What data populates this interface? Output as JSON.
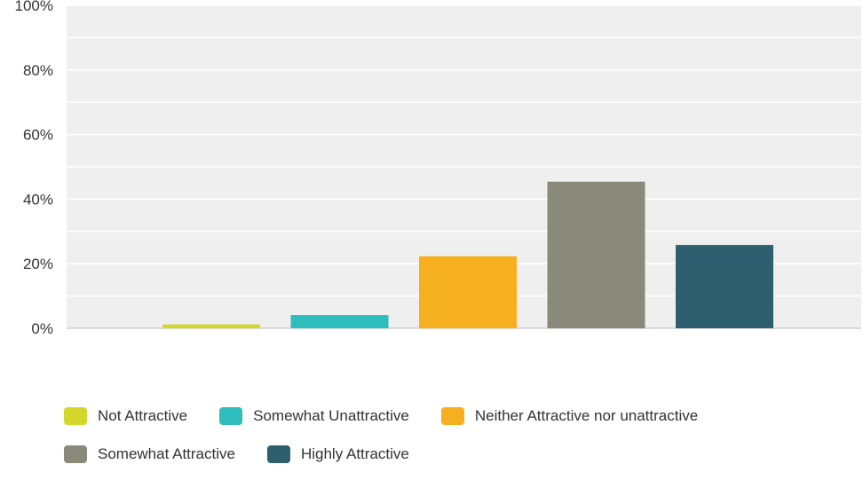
{
  "chart_data": {
    "type": "bar",
    "categories": [
      "Not Attractive",
      "Somewhat Unattractive",
      "Neither Attractive nor unattractive",
      "Somewhat Attractive",
      "Highly Attractive"
    ],
    "values": [
      1.2,
      4.1,
      22.3,
      45.4,
      25.8
    ],
    "colors": [
      "#d3d72b",
      "#2fbcbc",
      "#f6af1f",
      "#898a79",
      "#2d5f6e"
    ],
    "ylim": [
      0,
      100
    ],
    "yticks": [
      "0%",
      "20%",
      "40%",
      "60%",
      "80%",
      "100%"
    ],
    "ytick_values": [
      0,
      20,
      40,
      60,
      80,
      100
    ],
    "grid": true,
    "legend_position": "bottom"
  }
}
